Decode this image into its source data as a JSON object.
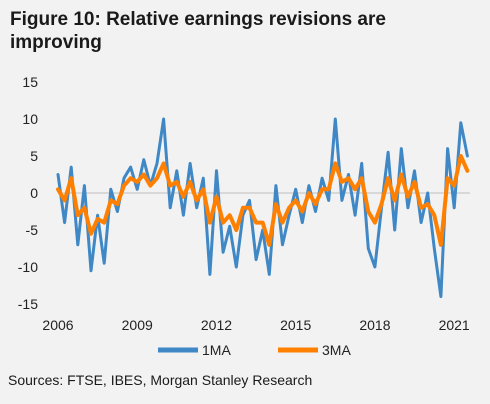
{
  "title": "Figure 10: Relative earnings revisions are improving",
  "source": "Sources: FTSE, IBES, Morgan Stanley Research",
  "chart_data": {
    "type": "line",
    "title": "Figure 10: Relative earnings revisions are improving",
    "xlabel": "",
    "ylabel": "",
    "xlim": [
      2006,
      2021.6
    ],
    "ylim": [
      -15,
      15
    ],
    "yticks": [
      15,
      10,
      5,
      0,
      -5,
      -10,
      -15
    ],
    "xticks": [
      "2006",
      "2009",
      "2012",
      "2015",
      "2018",
      "2021"
    ],
    "grid": false,
    "legend": "bottom",
    "x": [
      2006.0,
      2006.25,
      2006.5,
      2006.75,
      2007.0,
      2007.25,
      2007.5,
      2007.75,
      2008.0,
      2008.25,
      2008.5,
      2008.75,
      2009.0,
      2009.25,
      2009.5,
      2009.75,
      2010.0,
      2010.25,
      2010.5,
      2010.75,
      2011.0,
      2011.25,
      2011.5,
      2011.75,
      2012.0,
      2012.25,
      2012.5,
      2012.75,
      2013.0,
      2013.25,
      2013.5,
      2013.75,
      2014.0,
      2014.25,
      2014.5,
      2014.75,
      2015.0,
      2015.25,
      2015.5,
      2015.75,
      2016.0,
      2016.25,
      2016.5,
      2016.75,
      2017.0,
      2017.25,
      2017.5,
      2017.75,
      2018.0,
      2018.25,
      2018.5,
      2018.75,
      2019.0,
      2019.25,
      2019.5,
      2019.75,
      2020.0,
      2020.25,
      2020.5,
      2020.75,
      2021.0,
      2021.25,
      2021.5
    ],
    "series": [
      {
        "name": "1MA",
        "color": "#3f88c5",
        "values": [
          2.5,
          -4.0,
          3.5,
          -7.0,
          1.0,
          -10.5,
          -3.0,
          -9.5,
          0.5,
          -2.5,
          2.0,
          3.5,
          0.5,
          4.5,
          1.0,
          4.0,
          10.0,
          -2.0,
          3.0,
          -3.0,
          4.0,
          -2.0,
          2.0,
          -11.0,
          3.0,
          -8.0,
          -4.5,
          -10.0,
          -3.0,
          -1.0,
          -9.0,
          -5.0,
          -11.0,
          1.0,
          -7.0,
          -3.0,
          0.5,
          -4.0,
          1.0,
          -2.5,
          2.0,
          -1.0,
          10.0,
          -1.0,
          2.5,
          -3.0,
          4.0,
          -7.5,
          -10.0,
          -2.0,
          5.5,
          -5.0,
          6.0,
          -2.0,
          3.0,
          -4.0,
          0.0,
          -7.5,
          -14.0,
          6.0,
          -2.0,
          9.5,
          5.0
        ]
      },
      {
        "name": "3MA",
        "color": "#ff8000",
        "values": [
          0.5,
          -1.0,
          2.0,
          -3.0,
          -2.0,
          -5.5,
          -3.5,
          -4.0,
          -1.0,
          -1.5,
          1.0,
          2.0,
          1.5,
          2.5,
          1.0,
          2.0,
          4.0,
          1.0,
          1.5,
          -0.5,
          1.5,
          -1.0,
          0.5,
          -4.0,
          -0.5,
          -4.0,
          -3.0,
          -5.0,
          -2.0,
          -2.0,
          -4.0,
          -4.0,
          -7.0,
          -1.5,
          -4.0,
          -2.0,
          -1.0,
          -2.5,
          0.0,
          -1.5,
          0.5,
          0.5,
          4.0,
          1.5,
          2.0,
          0.5,
          2.0,
          -2.5,
          -4.0,
          -1.5,
          2.0,
          -1.0,
          2.5,
          -0.5,
          1.5,
          -2.0,
          -1.5,
          -3.0,
          -7.0,
          2.0,
          1.0,
          5.0,
          3.0
        ]
      }
    ]
  }
}
